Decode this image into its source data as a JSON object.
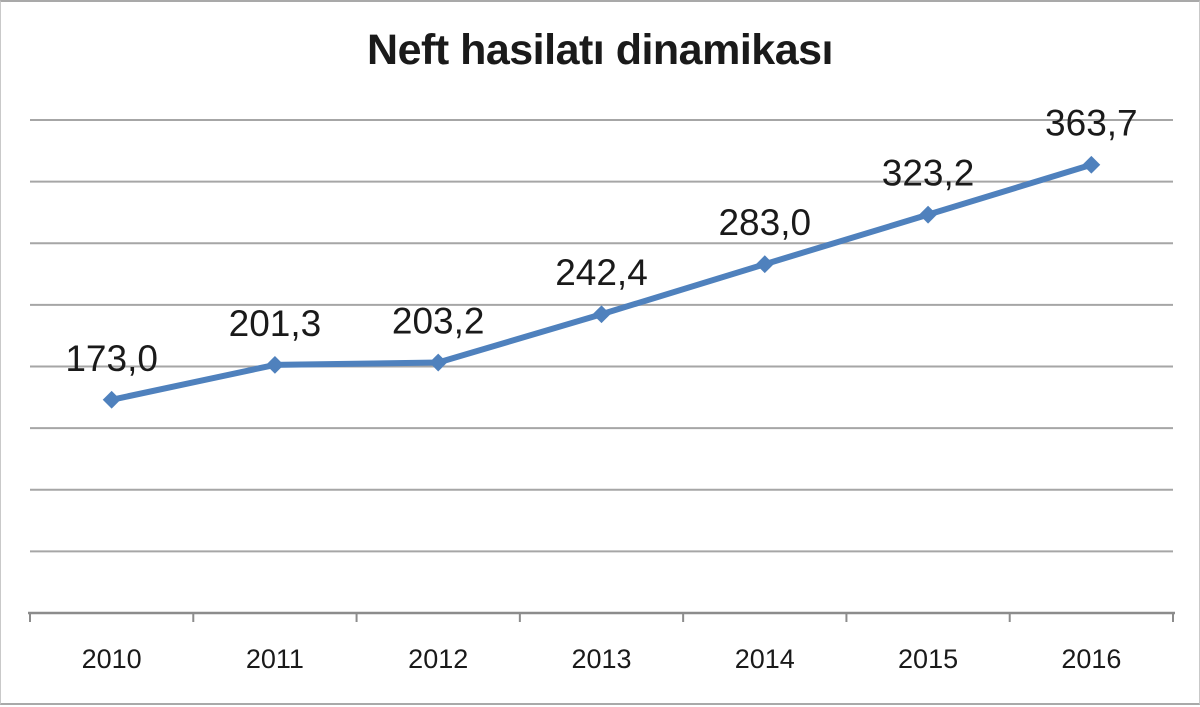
{
  "chart_data": {
    "type": "line",
    "title": "Neft hasilatı dinamikası",
    "categories": [
      "2010",
      "2011",
      "2012",
      "2013",
      "2014",
      "2015",
      "2016"
    ],
    "values": [
      173.0,
      201.3,
      203.2,
      242.4,
      283.0,
      323.2,
      363.7
    ],
    "data_labels": [
      "173,0",
      "201,3",
      "203,2",
      "242,4",
      "283,0",
      "323,2",
      "363,7"
    ],
    "xlabel": "",
    "ylabel": "",
    "ylim": [
      0,
      400
    ],
    "y_major_unit": 50,
    "grid": true,
    "legend": "none",
    "marker": "diamond",
    "colors": {
      "series": "#4F81BD",
      "gridline": "#a6a6a6",
      "axis": "#8c8c8c",
      "text": "#1a1a1a",
      "background": "#ffffff",
      "frame_border": "#a9a9a9"
    }
  }
}
